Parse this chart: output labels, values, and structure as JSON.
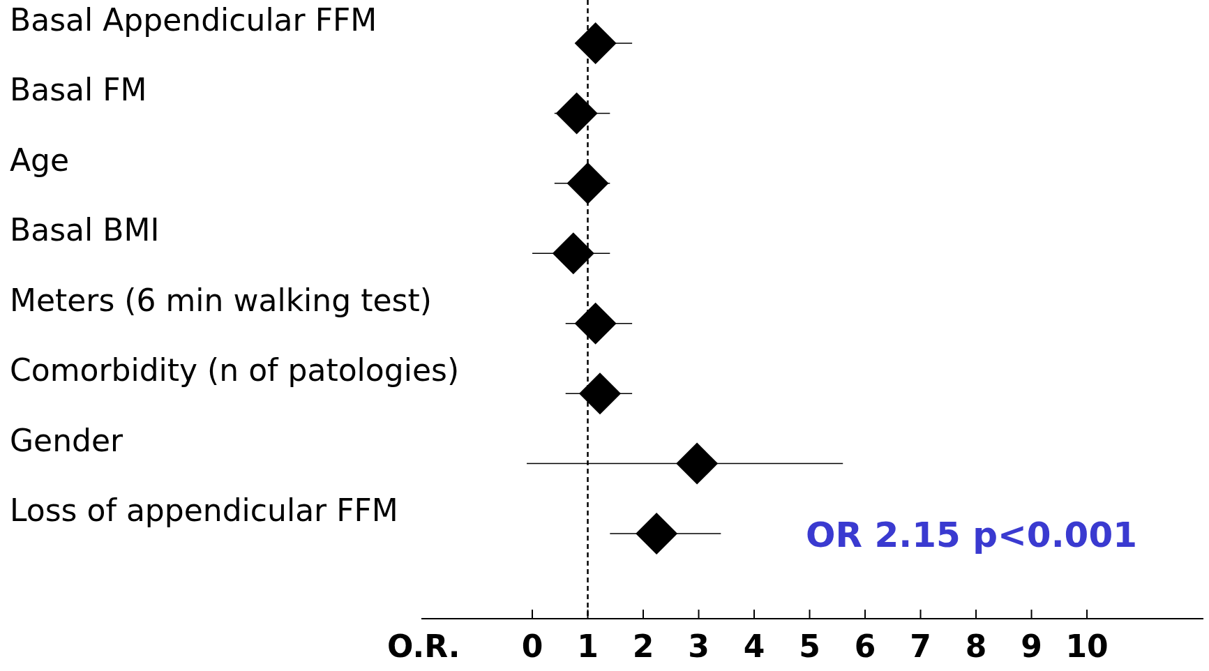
{
  "chart_data": {
    "type": "scatter",
    "orientation": "horizontal",
    "xlabel": "O.R.",
    "categories": [
      "Basal Appendicular FFM",
      "Basal FM",
      "Age",
      "Basal BMI",
      "Meters (6 min walking test)",
      "Comorbidity (n of patologies)",
      "Gender",
      "Loss of appendicular FFM"
    ],
    "values": [
      1.14,
      0.8,
      1.0,
      0.74,
      1.14,
      1.22,
      2.97,
      2.24
    ],
    "errors": [
      [
        0.8,
        1.8
      ],
      [
        0.4,
        1.4
      ],
      [
        0.4,
        1.4
      ],
      [
        0.0,
        1.4
      ],
      [
        0.6,
        1.8
      ],
      [
        0.6,
        1.8
      ],
      [
        -0.1,
        5.6
      ],
      [
        1.4,
        3.4
      ]
    ],
    "color": "#000000",
    "marker": "diamond",
    "xlim": [
      -2,
      12.1
    ],
    "xticks": [
      0,
      1,
      2,
      3,
      4,
      5,
      6,
      7,
      8,
      9,
      10
    ],
    "ref_lines": [
      {
        "axis": "x",
        "value": 1,
        "line_style": "dashed",
        "color": "#000000"
      }
    ],
    "annotations": [
      "OR 2.15 p<0.001"
    ],
    "grid": false
  }
}
